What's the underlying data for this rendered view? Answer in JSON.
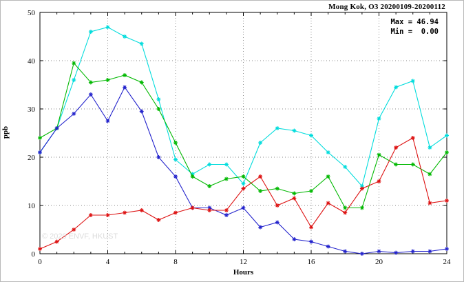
{
  "chart_data": {
    "type": "line",
    "title": "Mong Kok, O3 20200109-20200112",
    "xlabel": "Hours",
    "ylabel": "ppb",
    "annotations": [
      "Max = 46.94",
      "Min =  0.00"
    ],
    "watermark": "© 2020 ENVF, HKUST",
    "xlim": [
      0,
      24
    ],
    "ylim": [
      0,
      50
    ],
    "xticks": [
      0,
      4,
      8,
      12,
      16,
      20,
      24
    ],
    "yticks": [
      0,
      10,
      20,
      30,
      40,
      50
    ],
    "grid": true,
    "legend_position": "none",
    "marker": "asterisk",
    "x": [
      0,
      1,
      2,
      3,
      4,
      5,
      6,
      7,
      8,
      9,
      10,
      11,
      12,
      13,
      14,
      15,
      16,
      17,
      18,
      19,
      20,
      21,
      22,
      23,
      24
    ],
    "series": [
      {
        "name": "cyan",
        "color": "#00DCDC",
        "values": [
          21,
          26,
          36,
          46,
          46.94,
          45,
          43.5,
          32,
          19.5,
          16.5,
          18.5,
          18.5,
          14.5,
          23,
          26,
          25.5,
          24.5,
          21,
          18,
          14,
          28,
          34.5,
          35.8,
          22,
          24.5
        ]
      },
      {
        "name": "green",
        "color": "#00B800",
        "values": [
          24,
          26,
          39.5,
          35.5,
          36,
          37,
          35.5,
          30,
          23,
          16,
          14,
          15.5,
          16,
          13,
          13.5,
          12.5,
          13,
          16,
          9.5,
          9.5,
          20.5,
          18.5,
          18.5,
          16.5,
          21
        ]
      },
      {
        "name": "blue",
        "color": "#2222CC",
        "values": [
          21,
          26,
          29,
          33,
          27.5,
          34.5,
          29.5,
          20,
          16,
          9.5,
          9.5,
          8,
          9.5,
          5.5,
          6.5,
          3,
          2.5,
          1.5,
          0.5,
          0,
          0.5,
          0.2,
          0.5,
          0.5,
          1
        ]
      },
      {
        "name": "red",
        "color": "#DD1111",
        "values": [
          1,
          2.5,
          5,
          8,
          8,
          8.5,
          9,
          7,
          8.5,
          9.5,
          9,
          9,
          13.5,
          16,
          10,
          11.5,
          5.5,
          10.5,
          8.5,
          13.5,
          15,
          22,
          24,
          10.5,
          11
        ]
      }
    ]
  }
}
